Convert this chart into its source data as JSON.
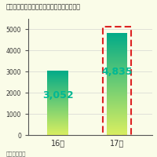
{
  "title": "フリマアプリの推定市場規模（単位：億円）",
  "footnote": "（経産業省）",
  "categories": [
    "16年",
    "17年"
  ],
  "values": [
    3052,
    4835
  ],
  "labels": [
    "3,052",
    "4,835"
  ],
  "label_color": "#00b894",
  "background_color": "#fafce8",
  "yticks": [
    0,
    1000,
    2000,
    3000,
    4000,
    5000
  ],
  "ylim": [
    0,
    5500
  ],
  "title_fontsize": 5.8,
  "label_fontsize": 9,
  "tick_fontsize": 5.5,
  "footnote_fontsize": 5.0,
  "bar_top_color": "#00aa88",
  "bar_bottom_color": "#d8ee60",
  "dashed_color": "#dd2222",
  "axis_color": "#555555"
}
